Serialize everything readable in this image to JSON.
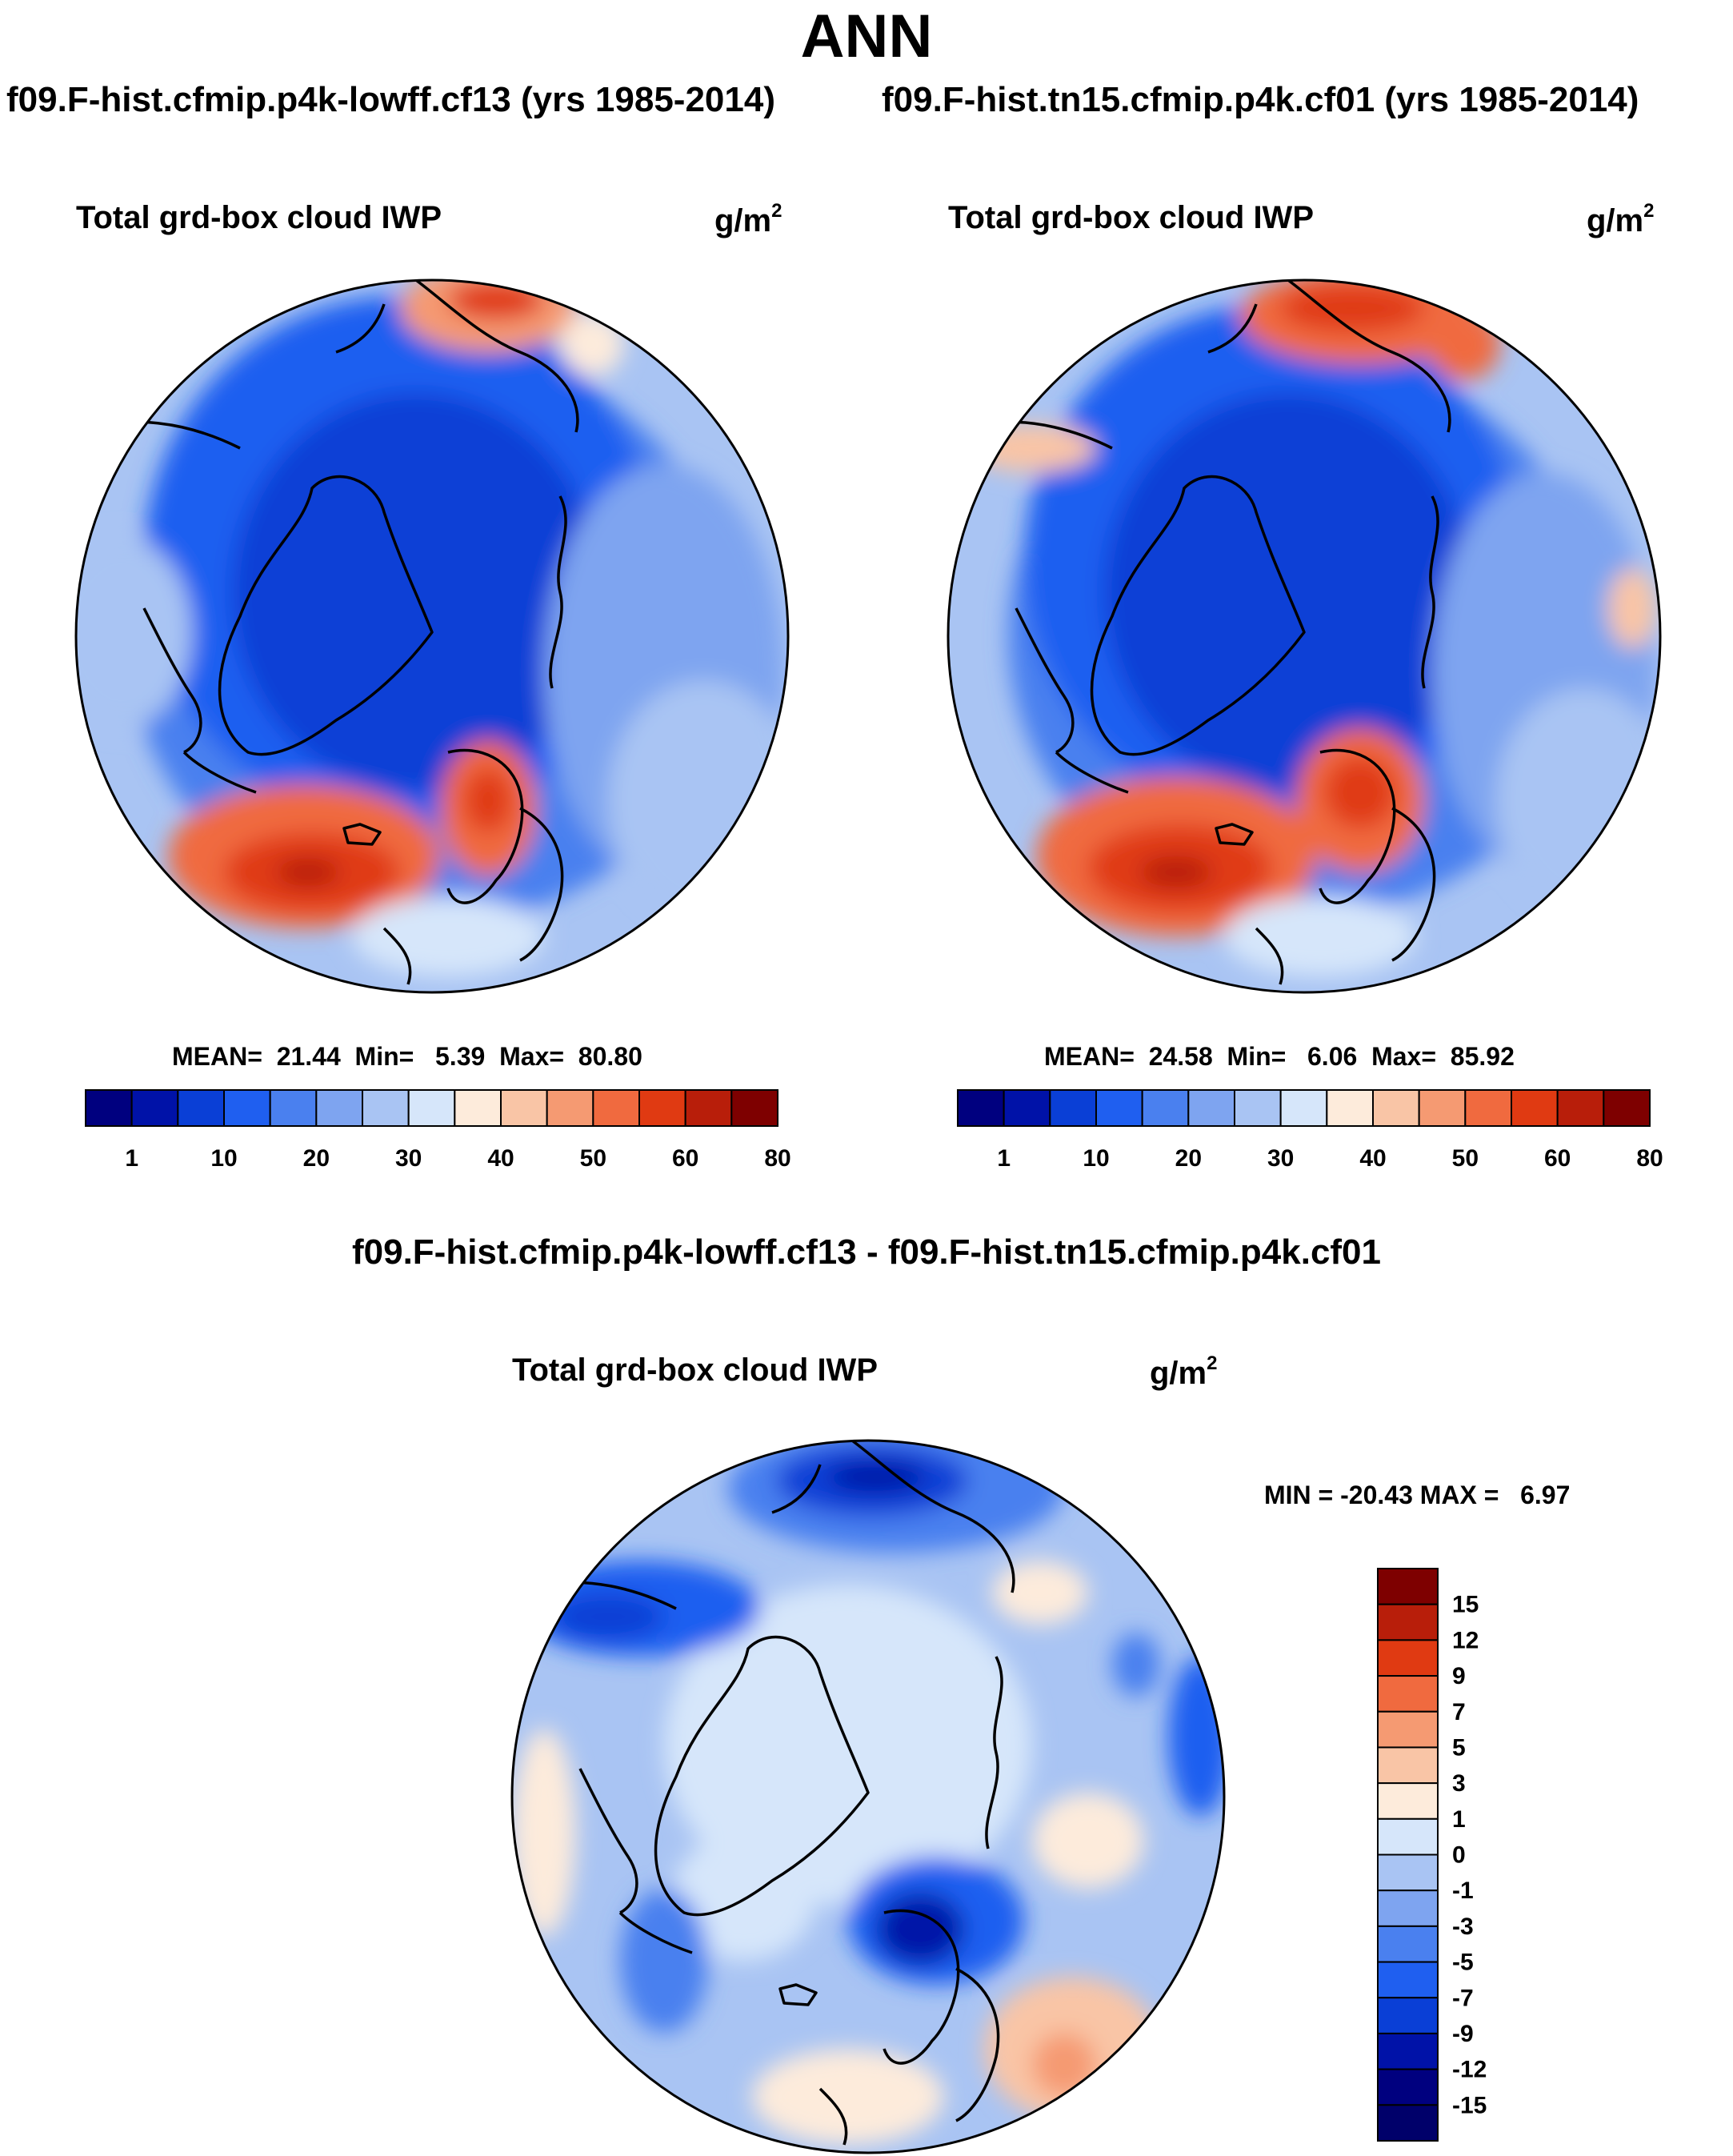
{
  "title": "ANN",
  "case1_title": "f09.F-hist.cfmip.p4k-lowff.cf13 (yrs 1985-2014)",
  "case2_title": "f09.F-hist.tn15.cfmip.p4k.cf01 (yrs 1985-2014)",
  "diff_title": "f09.F-hist.cfmip.p4k-lowff.cf13 - f09.F-hist.tn15.cfmip.p4k.cf01",
  "variable": "Total grd-box cloud IWP",
  "units_base": "g/m",
  "units_exp": "2",
  "panels": [
    {
      "id": "case1",
      "stats": "MEAN=  21.44  Min=   5.39  Max=  80.80"
    },
    {
      "id": "case2",
      "stats": "MEAN=  24.58  Min=   6.06  Max=  85.92"
    },
    {
      "id": "diff",
      "stats": "MIN = -20.43 MAX =   6.97"
    }
  ],
  "colorbar_abs": {
    "colors": [
      "#00007f",
      "#0012a8",
      "#0a3fd6",
      "#1f5ff0",
      "#4a80ef",
      "#7ea4f0",
      "#a9c4f3",
      "#d6e6fa",
      "#fdebdb",
      "#f9c5a6",
      "#f59a72",
      "#f06a3f",
      "#e03a12",
      "#b81e0a",
      "#7e0000"
    ],
    "labels": [
      "1",
      "10",
      "20",
      "30",
      "40",
      "50",
      "60",
      "80"
    ]
  },
  "colorbar_diff": {
    "colors": [
      "#7e0000",
      "#b81e0a",
      "#e03a12",
      "#f06a3f",
      "#f59a72",
      "#f9c5a6",
      "#fdebdb",
      "#d6e6fa",
      "#a9c4f3",
      "#7ea4f0",
      "#4a80ef",
      "#1f5ff0",
      "#0a3fd6",
      "#0012a8",
      "#00007f",
      "#00006a"
    ],
    "labels": [
      "15",
      "12",
      "9",
      "7",
      "5",
      "3",
      "1",
      "0",
      "-1",
      "-3",
      "-5",
      "-7",
      "-9",
      "-12",
      "-15"
    ]
  },
  "colors": {
    "land_outline": "#000000"
  }
}
